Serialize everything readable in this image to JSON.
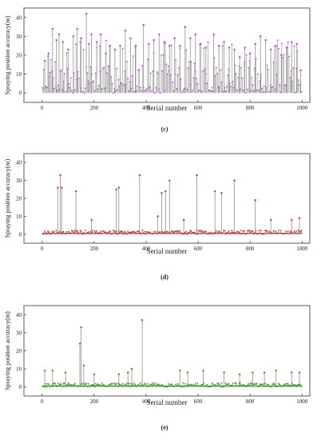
{
  "chart_data": [
    {
      "id": "c",
      "type": "bar",
      "panel_label": "(c)",
      "xlabel": "Serial number",
      "ylabel": "Spraying position accuracy(m)",
      "xlim": [
        -70,
        1030
      ],
      "ylim": [
        -5,
        45
      ],
      "xticks": [
        "0",
        "200",
        "400",
        "600",
        "800",
        "1000"
      ],
      "yticks": [
        "0",
        "10",
        "20",
        "30",
        "40"
      ],
      "colors": {
        "bar": "#8f8f8f",
        "marker": "#c040d8"
      },
      "marker_color_name": "purple",
      "note": "dense spike series, ~1000 samples",
      "peaks": [
        {
          "x": 10,
          "y": 17
        },
        {
          "x": 25,
          "y": 21
        },
        {
          "x": 40,
          "y": 34
        },
        {
          "x": 55,
          "y": 28
        },
        {
          "x": 65,
          "y": 31
        },
        {
          "x": 80,
          "y": 27
        },
        {
          "x": 100,
          "y": 23
        },
        {
          "x": 120,
          "y": 30
        },
        {
          "x": 135,
          "y": 34
        },
        {
          "x": 150,
          "y": 29
        },
        {
          "x": 170,
          "y": 42
        },
        {
          "x": 180,
          "y": 26
        },
        {
          "x": 190,
          "y": 31
        },
        {
          "x": 210,
          "y": 27
        },
        {
          "x": 225,
          "y": 31
        },
        {
          "x": 245,
          "y": 21
        },
        {
          "x": 260,
          "y": 25
        },
        {
          "x": 280,
          "y": 23
        },
        {
          "x": 300,
          "y": 25
        },
        {
          "x": 320,
          "y": 33
        },
        {
          "x": 340,
          "y": 29
        },
        {
          "x": 360,
          "y": 25
        },
        {
          "x": 390,
          "y": 36
        },
        {
          "x": 410,
          "y": 26
        },
        {
          "x": 430,
          "y": 28
        },
        {
          "x": 450,
          "y": 31
        },
        {
          "x": 470,
          "y": 27
        },
        {
          "x": 490,
          "y": 25
        },
        {
          "x": 510,
          "y": 29
        },
        {
          "x": 530,
          "y": 25
        },
        {
          "x": 550,
          "y": 35
        },
        {
          "x": 570,
          "y": 29
        },
        {
          "x": 590,
          "y": 31
        },
        {
          "x": 610,
          "y": 26
        },
        {
          "x": 630,
          "y": 24
        },
        {
          "x": 660,
          "y": 31
        },
        {
          "x": 680,
          "y": 25
        },
        {
          "x": 700,
          "y": 27
        },
        {
          "x": 720,
          "y": 24
        },
        {
          "x": 740,
          "y": 23
        },
        {
          "x": 760,
          "y": 19
        },
        {
          "x": 780,
          "y": 24
        },
        {
          "x": 800,
          "y": 21
        },
        {
          "x": 820,
          "y": 26
        },
        {
          "x": 840,
          "y": 30
        },
        {
          "x": 860,
          "y": 28
        },
        {
          "x": 880,
          "y": 23
        },
        {
          "x": 900,
          "y": 25
        },
        {
          "x": 920,
          "y": 20
        },
        {
          "x": 940,
          "y": 24
        },
        {
          "x": 960,
          "y": 27
        },
        {
          "x": 980,
          "y": 26
        },
        {
          "x": 995,
          "y": 12
        }
      ]
    },
    {
      "id": "d",
      "type": "bar",
      "panel_label": "(d)",
      "xlabel": "Serial number",
      "ylabel": "Spraying position accuracy(m)",
      "xlim": [
        -70,
        1030
      ],
      "ylim": [
        -5,
        45
      ],
      "xticks": [
        "0",
        "200",
        "400",
        "600",
        "800",
        "1000"
      ],
      "yticks": [
        "0",
        "10",
        "20",
        "30",
        "40"
      ],
      "colors": {
        "bar": "#8f8f8f",
        "marker": "#d03030"
      },
      "marker_color_name": "red",
      "note": "mostly small values with sparse peaks",
      "peaks": [
        {
          "x": 60,
          "y": 26
        },
        {
          "x": 70,
          "y": 33
        },
        {
          "x": 75,
          "y": 26
        },
        {
          "x": 130,
          "y": 24
        },
        {
          "x": 190,
          "y": 8
        },
        {
          "x": 285,
          "y": 25
        },
        {
          "x": 295,
          "y": 26
        },
        {
          "x": 375,
          "y": 33
        },
        {
          "x": 445,
          "y": 10
        },
        {
          "x": 460,
          "y": 23
        },
        {
          "x": 475,
          "y": 24
        },
        {
          "x": 490,
          "y": 30
        },
        {
          "x": 545,
          "y": 8
        },
        {
          "x": 595,
          "y": 33
        },
        {
          "x": 665,
          "y": 24
        },
        {
          "x": 690,
          "y": 23
        },
        {
          "x": 740,
          "y": 30
        },
        {
          "x": 820,
          "y": 19
        },
        {
          "x": 880,
          "y": 8
        },
        {
          "x": 960,
          "y": 8
        },
        {
          "x": 990,
          "y": 9
        }
      ]
    },
    {
      "id": "e",
      "type": "bar",
      "panel_label": "(e)",
      "xlabel": "Serial number",
      "ylabel": "Spraying position accuracy(m)",
      "xlim": [
        -70,
        1030
      ],
      "ylim": [
        -5,
        45
      ],
      "xticks": [
        "0",
        "200",
        "400",
        "600",
        "800",
        "1000"
      ],
      "yticks": [
        "0",
        "10",
        "20",
        "30",
        "40"
      ],
      "colors": {
        "bar": "#8f8f8f",
        "marker": "#3a9a20"
      },
      "marker_color_name": "green",
      "note": "mostly small values with two large spikes",
      "peaks": [
        {
          "x": 10,
          "y": 9
        },
        {
          "x": 40,
          "y": 9
        },
        {
          "x": 90,
          "y": 8
        },
        {
          "x": 145,
          "y": 24
        },
        {
          "x": 150,
          "y": 33
        },
        {
          "x": 160,
          "y": 12
        },
        {
          "x": 200,
          "y": 7
        },
        {
          "x": 295,
          "y": 7
        },
        {
          "x": 330,
          "y": 8
        },
        {
          "x": 345,
          "y": 10
        },
        {
          "x": 385,
          "y": 37
        },
        {
          "x": 530,
          "y": 9
        },
        {
          "x": 560,
          "y": 8
        },
        {
          "x": 620,
          "y": 9
        },
        {
          "x": 700,
          "y": 8
        },
        {
          "x": 760,
          "y": 7
        },
        {
          "x": 810,
          "y": 8
        },
        {
          "x": 855,
          "y": 8
        },
        {
          "x": 900,
          "y": 9
        },
        {
          "x": 960,
          "y": 8
        },
        {
          "x": 990,
          "y": 8
        }
      ]
    }
  ]
}
